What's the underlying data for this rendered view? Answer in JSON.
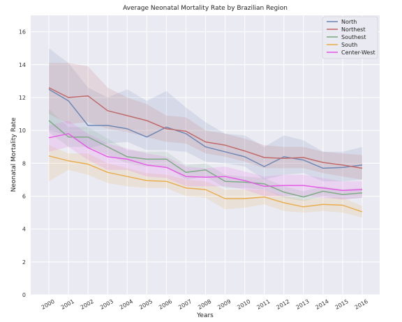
{
  "chart_data": {
    "type": "line",
    "title": "Average Neonatal Mortality Rate by Brazilian Region",
    "xlabel": "Years",
    "ylabel": "Neonatal Mortality Rate",
    "ylim": [
      0,
      17
    ],
    "yticks": [
      0,
      2,
      4,
      6,
      8,
      10,
      12,
      14,
      16
    ],
    "categories": [
      "2000",
      "2001",
      "2002",
      "2003",
      "2004",
      "2005",
      "2006",
      "2007",
      "2008",
      "2009",
      "2010",
      "2011",
      "2012",
      "2013",
      "2014",
      "2015",
      "2016"
    ],
    "grid": true,
    "legend_position": "top-right",
    "series": [
      {
        "name": "North",
        "color": "#6f88b5",
        "values": [
          12.5,
          11.8,
          10.3,
          10.3,
          10.1,
          9.6,
          10.2,
          9.8,
          9.0,
          8.7,
          8.4,
          7.8,
          8.4,
          8.2,
          7.7,
          7.75,
          7.9
        ],
        "lower": [
          10.0,
          9.7,
          8.9,
          9.2,
          9.3,
          8.8,
          8.8,
          8.7,
          8.1,
          8.0,
          7.8,
          7.0,
          7.3,
          7.4,
          6.9,
          6.9,
          7.0
        ],
        "upper": [
          15.0,
          14.1,
          12.6,
          12.0,
          12.5,
          11.8,
          12.4,
          11.4,
          10.5,
          9.8,
          9.7,
          9.0,
          9.7,
          9.4,
          8.7,
          8.7,
          9.0
        ]
      },
      {
        "name": "Northest",
        "color": "#c06a6a",
        "values": [
          12.6,
          12.0,
          12.1,
          11.2,
          10.9,
          10.6,
          10.1,
          9.95,
          9.3,
          9.1,
          8.75,
          8.35,
          8.3,
          8.35,
          8.05,
          7.9,
          7.7
        ],
        "lower": [
          11.0,
          10.4,
          10.5,
          10.1,
          9.9,
          9.6,
          9.3,
          9.2,
          8.6,
          8.4,
          8.1,
          7.7,
          7.7,
          7.7,
          7.4,
          7.2,
          7.0
        ],
        "upper": [
          14.1,
          14.1,
          13.9,
          12.6,
          12.0,
          11.6,
          10.9,
          10.8,
          10.0,
          9.8,
          9.5,
          9.1,
          9.0,
          9.0,
          8.7,
          8.6,
          8.5
        ]
      },
      {
        "name": "Southest",
        "color": "#7fab86",
        "values": [
          10.6,
          9.6,
          9.6,
          9.0,
          8.4,
          8.25,
          8.25,
          7.45,
          7.6,
          6.9,
          6.85,
          6.75,
          6.25,
          5.95,
          6.3,
          6.1,
          6.2
        ],
        "lower": [
          9.9,
          9.0,
          9.0,
          8.5,
          8.0,
          7.8,
          7.8,
          7.0,
          7.2,
          6.5,
          6.5,
          6.4,
          5.9,
          5.7,
          6.0,
          5.8,
          5.9
        ],
        "upper": [
          11.3,
          10.2,
          10.2,
          9.5,
          8.8,
          8.7,
          8.7,
          7.9,
          8.0,
          7.3,
          7.2,
          7.1,
          6.6,
          6.3,
          6.6,
          6.4,
          6.5
        ]
      },
      {
        "name": "South",
        "color": "#e9ae4f",
        "values": [
          8.45,
          8.15,
          7.95,
          7.45,
          7.2,
          6.95,
          6.9,
          6.5,
          6.4,
          5.85,
          5.85,
          5.95,
          5.6,
          5.35,
          5.5,
          5.45,
          5.05
        ],
        "lower": [
          6.9,
          7.6,
          7.3,
          6.8,
          6.6,
          6.5,
          6.5,
          6.0,
          5.9,
          5.2,
          5.3,
          5.5,
          5.1,
          5.0,
          5.1,
          5.0,
          4.7
        ],
        "upper": [
          9.1,
          8.6,
          8.6,
          8.0,
          7.7,
          7.4,
          7.3,
          7.0,
          6.9,
          6.4,
          6.4,
          6.4,
          6.0,
          5.8,
          5.9,
          5.9,
          5.4
        ]
      },
      {
        "name": "Center-West",
        "color": "#e55ce5",
        "values": [
          9.55,
          9.8,
          8.95,
          8.4,
          8.25,
          7.9,
          7.75,
          7.2,
          7.15,
          7.2,
          6.95,
          6.6,
          6.65,
          6.65,
          6.5,
          6.35,
          6.4
        ],
        "lower": [
          8.7,
          9.0,
          8.2,
          7.6,
          7.6,
          7.2,
          7.1,
          6.6,
          6.6,
          6.6,
          6.4,
          6.0,
          6.0,
          6.0,
          5.9,
          5.8,
          5.9
        ],
        "upper": [
          10.3,
          10.6,
          9.8,
          9.2,
          8.9,
          8.6,
          8.4,
          7.8,
          7.7,
          7.8,
          7.5,
          7.2,
          7.3,
          7.3,
          7.1,
          6.9,
          6.9
        ]
      }
    ]
  }
}
